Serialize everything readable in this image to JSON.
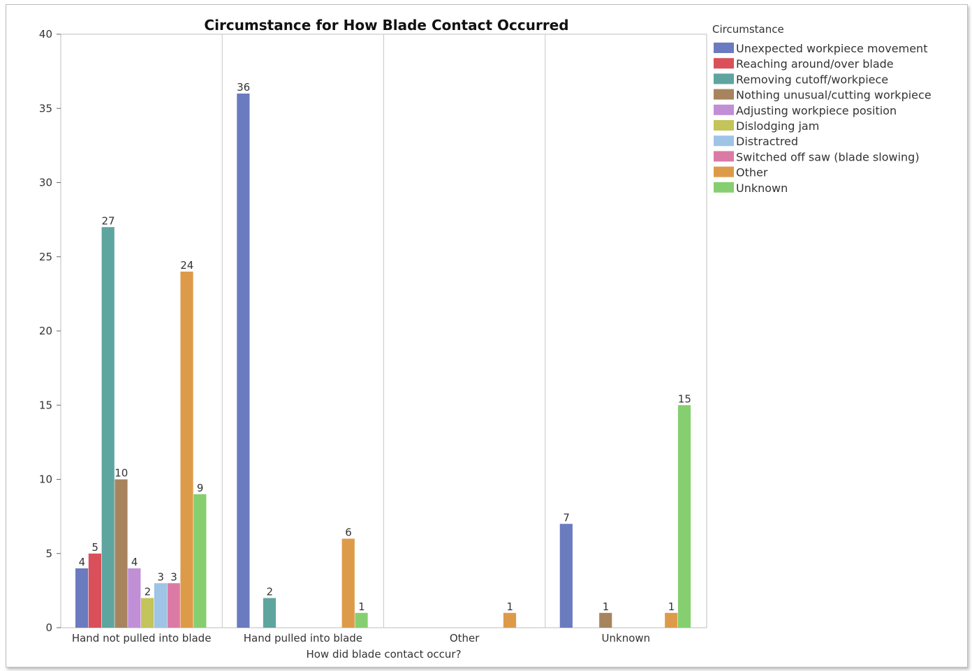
{
  "chart_data": {
    "type": "bar",
    "title": "Circumstance for How Blade Contact Occurred",
    "xlabel": "How did blade contact occur?",
    "ylabel": "",
    "ylim": [
      0,
      40
    ],
    "yticks": [
      0,
      5,
      10,
      15,
      20,
      25,
      30,
      35,
      40
    ],
    "grid": false,
    "legend_title": "Circumstance",
    "legend_position": "right",
    "categories": [
      "Hand not pulled into blade",
      "Hand pulled into blade",
      "Other",
      "Unknown"
    ],
    "series": [
      {
        "name": "Unexpected workpiece movement",
        "color": "#6b7bbf",
        "values": [
          4,
          36,
          null,
          7
        ]
      },
      {
        "name": "Reaching around/over blade",
        "color": "#d9505a",
        "values": [
          5,
          null,
          null,
          null
        ]
      },
      {
        "name": "Removing cutoff/workpiece",
        "color": "#5fa59f",
        "values": [
          27,
          2,
          null,
          null
        ]
      },
      {
        "name": "Nothing unusual/cutting workpiece",
        "color": "#a7845e",
        "values": [
          10,
          null,
          null,
          1
        ]
      },
      {
        "name": "Adjusting workpiece position",
        "color": "#c08fd6",
        "values": [
          4,
          null,
          null,
          null
        ]
      },
      {
        "name": "Dislodging jam",
        "color": "#c3c45a",
        "values": [
          2,
          null,
          null,
          null
        ]
      },
      {
        "name": "Distractred",
        "color": "#9ec4e6",
        "values": [
          3,
          null,
          null,
          null
        ]
      },
      {
        "name": "Switched off saw (blade slowing)",
        "color": "#dc7aa6",
        "values": [
          3,
          null,
          null,
          null
        ]
      },
      {
        "name": "Other",
        "color": "#dd9b49",
        "values": [
          24,
          6,
          1,
          1
        ]
      },
      {
        "name": "Unknown",
        "color": "#86cf70",
        "values": [
          9,
          1,
          null,
          15
        ]
      }
    ]
  }
}
